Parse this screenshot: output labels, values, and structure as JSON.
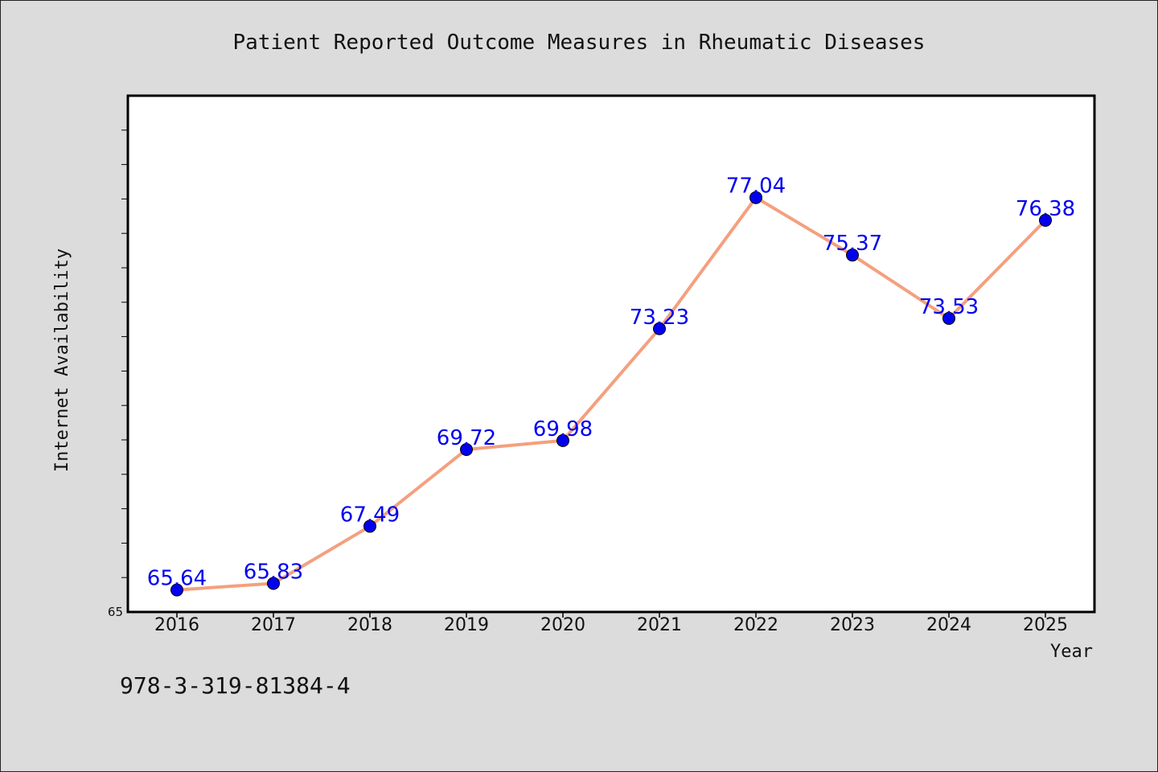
{
  "chart_data": {
    "type": "line",
    "title": "Patient Reported Outcome Measures in Rheumatic Diseases",
    "xlabel": "Year",
    "ylabel": "Internet Availability",
    "categories": [
      "2016",
      "2017",
      "2018",
      "2019",
      "2020",
      "2021",
      "2022",
      "2023",
      "2024",
      "2025"
    ],
    "series": [
      {
        "values": [
          65.64,
          65.83,
          67.49,
          69.72,
          69.98,
          73.23,
          77.04,
          75.37,
          73.53,
          76.38
        ],
        "line_color": "#f4a07e",
        "marker_color": "#0000ee"
      }
    ],
    "data_labels": [
      "65.64",
      "65.83",
      "67.49",
      "69.72",
      "69.98",
      "73.23",
      "77.04",
      "75.37",
      "73.53",
      "76.38"
    ],
    "data_label_color": "#0000ee",
    "y_min_label": "65",
    "ylim": [
      65,
      80
    ],
    "y_minor_tick_step": 1,
    "grid": false,
    "plot_background": "#ffffff",
    "page_background": "#dcdcdc"
  },
  "footer": {
    "isbn": "978-3-319-81384-4"
  }
}
